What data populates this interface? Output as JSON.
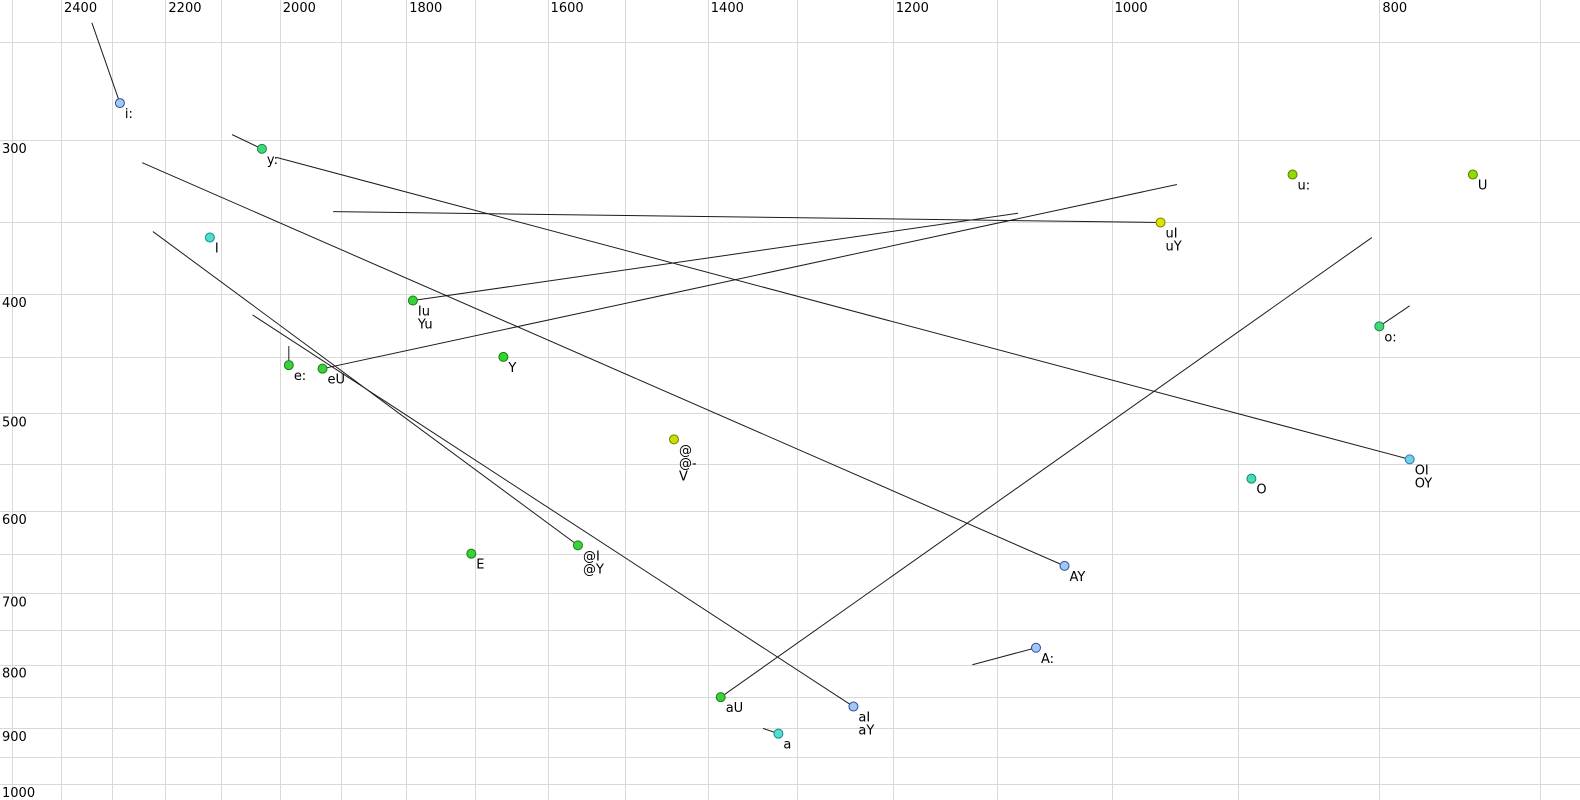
{
  "chart_data": {
    "type": "scatter",
    "title": "",
    "description": "Vowel formant space plot: F2 (Hz) on reversed logarithmic x-axis, F1 (Hz) on logarithmic y-axis, with monophthong/diphthong points and trajectory lines",
    "x_axis": {
      "scale": "log-reversed",
      "tick_labels": [
        "2400",
        "2200",
        "2000",
        "1800",
        "1600",
        "1400",
        "1200",
        "1000",
        "800"
      ],
      "tick_values": [
        2400,
        2200,
        2000,
        1800,
        1600,
        1400,
        1200,
        1000,
        800
      ],
      "grid_values": [
        2500,
        2400,
        2300,
        2200,
        2100,
        2000,
        1900,
        1800,
        1700,
        1600,
        1500,
        1400,
        1300,
        1200,
        1100,
        1000,
        900,
        800,
        700
      ],
      "grid_on": true
    },
    "y_axis": {
      "scale": "log",
      "tick_labels": [
        "300",
        "400",
        "500",
        "600",
        "700",
        "800",
        "900",
        "1000"
      ],
      "tick_values": [
        300,
        400,
        500,
        600,
        700,
        800,
        900,
        1000
      ],
      "grid_values": [
        250,
        300,
        350,
        400,
        450,
        500,
        550,
        600,
        650,
        700,
        750,
        800,
        850,
        900,
        950,
        1000
      ],
      "grid_on": true
    },
    "colors": {
      "grid": "#d9d9d9",
      "line": "#1c1c1c",
      "label_text": "#000000"
    },
    "points": [
      {
        "id": "i-long",
        "labels": [
          "i:"
        ],
        "f2": 2285,
        "f1": 280,
        "fill": "#a4c6f0",
        "stroke": "#2a4d9e"
      },
      {
        "id": "y-long",
        "labels": [
          "y:"
        ],
        "f2": 2030,
        "f1": 305,
        "fill": "#45d678",
        "stroke": "#128a50"
      },
      {
        "id": "I",
        "labels": [
          "I"
        ],
        "f2": 2120,
        "f1": 360,
        "fill": "#52dcd2",
        "stroke": "#0f8f88"
      },
      {
        "id": "u-long",
        "labels": [
          "u:"
        ],
        "f2": 860,
        "f1": 320,
        "fill": "#93d900",
        "stroke": "#567f00"
      },
      {
        "id": "U",
        "labels": [
          "U"
        ],
        "f2": 740,
        "f1": 320,
        "fill": "#93d900",
        "stroke": "#567f00"
      },
      {
        "id": "uI",
        "labels": [
          "uI",
          "uY"
        ],
        "f2": 960,
        "f1": 350,
        "fill": "#dce400",
        "stroke": "#7f7f00"
      },
      {
        "id": "Iu",
        "labels": [
          "Iu",
          "Yu"
        ],
        "f2": 1790,
        "f1": 405,
        "fill": "#3bd13b",
        "stroke": "#157f15"
      },
      {
        "id": "o-long",
        "labels": [
          "o:"
        ],
        "f2": 800,
        "f1": 425,
        "fill": "#45d678",
        "stroke": "#128a50"
      },
      {
        "id": "e-long",
        "labels": [
          "e:"
        ],
        "f2": 1985,
        "f1": 457,
        "fill": "#3bd13b",
        "stroke": "#157f15"
      },
      {
        "id": "eU",
        "labels": [
          "eU"
        ],
        "f2": 1930,
        "f1": 460,
        "fill": "#3bd13b",
        "stroke": "#157f15"
      },
      {
        "id": "Y",
        "labels": [
          "Y"
        ],
        "f2": 1660,
        "f1": 450,
        "fill": "#2ed52e",
        "stroke": "#157f15"
      },
      {
        "id": "schwa",
        "labels": [
          "@",
          "@-",
          "V"
        ],
        "f2": 1440,
        "f1": 525,
        "fill": "#c8e000",
        "stroke": "#6f7f00"
      },
      {
        "id": "OI",
        "labels": [
          "OI",
          "OY"
        ],
        "f2": 780,
        "f1": 545,
        "fill": "#74cfe8",
        "stroke": "#2a7fa8"
      },
      {
        "id": "O",
        "labels": [
          "O"
        ],
        "f2": 890,
        "f1": 565,
        "fill": "#4bdab4",
        "stroke": "#0f8f70"
      },
      {
        "id": "schwa-I",
        "labels": [
          "@I",
          "@Y"
        ],
        "f2": 1560,
        "f1": 640,
        "fill": "#3bd13b",
        "stroke": "#157f15"
      },
      {
        "id": "E",
        "labels": [
          "E"
        ],
        "f2": 1705,
        "f1": 650,
        "fill": "#3bd13b",
        "stroke": "#157f15"
      },
      {
        "id": "AY",
        "labels": [
          "AY"
        ],
        "f2": 1040,
        "f1": 665,
        "fill": "#a4c6f0",
        "stroke": "#2a4d9e"
      },
      {
        "id": "A-long",
        "labels": [
          "A:"
        ],
        "f2": 1065,
        "f1": 775,
        "fill": "#a4c6f0",
        "stroke": "#2a4d9e"
      },
      {
        "id": "aU",
        "labels": [
          "aU"
        ],
        "f2": 1385,
        "f1": 850,
        "fill": "#3bd13b",
        "stroke": "#157f15"
      },
      {
        "id": "aI",
        "labels": [
          "aI",
          "aY"
        ],
        "f2": 1240,
        "f1": 865,
        "fill": "#a4c6f0",
        "stroke": "#2a4d9e"
      },
      {
        "id": "a",
        "labels": [
          "a"
        ],
        "f2": 1320,
        "f1": 910,
        "fill": "#52dcd2",
        "stroke": "#0f8f88"
      }
    ],
    "trajectories": [
      {
        "id": "traj-i-long",
        "from": {
          "f2": 2339,
          "f1": 241
        },
        "to": {
          "f2": 2285,
          "f1": 280
        }
      },
      {
        "id": "traj-y-long",
        "from": {
          "f2": 2081,
          "f1": 297
        },
        "to": {
          "f2": 2030,
          "f1": 305
        }
      },
      {
        "id": "traj-OI",
        "from": {
          "f2": 2005,
          "f1": 310
        },
        "to": {
          "f2": 780,
          "f1": 545
        }
      },
      {
        "id": "traj-AY",
        "from": {
          "f2": 2243,
          "f1": 313
        },
        "to": {
          "f2": 1040,
          "f1": 665
        }
      },
      {
        "id": "traj-schwa-I",
        "from": {
          "f2": 2223,
          "f1": 356
        },
        "to": {
          "f2": 1560,
          "f1": 640
        }
      },
      {
        "id": "traj-aI",
        "from": {
          "f2": 2046,
          "f1": 416
        },
        "to": {
          "f2": 1240,
          "f1": 865
        }
      },
      {
        "id": "traj-eU",
        "from": {
          "f2": 1930,
          "f1": 460
        },
        "to": {
          "f2": 947,
          "f1": 326
        }
      },
      {
        "id": "traj-uI",
        "from": {
          "f2": 1913,
          "f1": 343
        },
        "to": {
          "f2": 960,
          "f1": 350
        }
      },
      {
        "id": "traj-Iu",
        "from": {
          "f2": 1790,
          "f1": 405
        },
        "to": {
          "f2": 1081,
          "f1": 344
        }
      },
      {
        "id": "traj-aU",
        "from": {
          "f2": 1385,
          "f1": 850
        },
        "to": {
          "f2": 805,
          "f1": 360
        }
      },
      {
        "id": "traj-A-long",
        "from": {
          "f2": 1123,
          "f1": 800
        },
        "to": {
          "f2": 1065,
          "f1": 775
        }
      },
      {
        "id": "traj-e-long",
        "from": {
          "f2": 1985,
          "f1": 441
        },
        "to": {
          "f2": 1985,
          "f1": 457
        }
      },
      {
        "id": "traj-o-long",
        "from": {
          "f2": 800,
          "f1": 425
        },
        "to": {
          "f2": 780,
          "f1": 409
        }
      },
      {
        "id": "traj-a",
        "from": {
          "f2": 1337,
          "f1": 901
        },
        "to": {
          "f2": 1320,
          "f1": 910
        }
      }
    ]
  }
}
